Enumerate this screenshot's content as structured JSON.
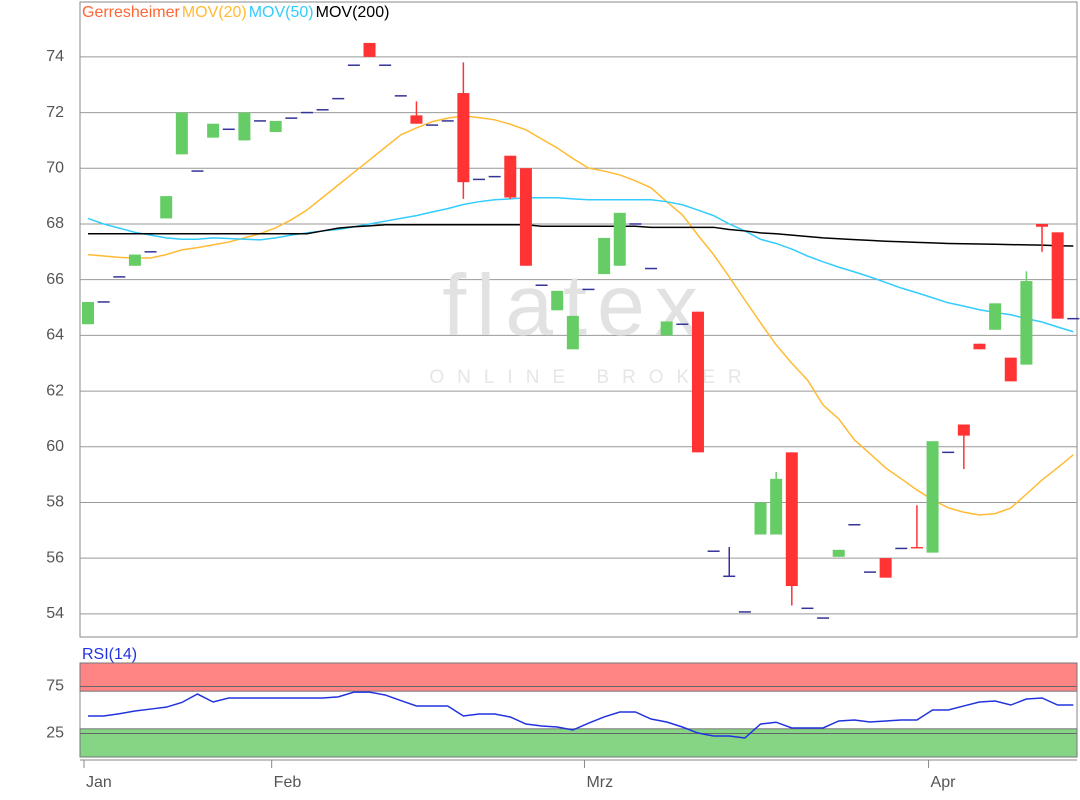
{
  "watermark": {
    "logo": "flatex",
    "tagline": "ONLINE BROKER"
  },
  "chart_data": [
    {
      "type": "candlestick",
      "categories": [
        "Jan",
        null,
        null,
        null,
        null,
        null,
        null,
        null,
        null,
        null,
        null,
        null,
        "Feb",
        null,
        null,
        null,
        null,
        null,
        null,
        null,
        null,
        null,
        null,
        null,
        null,
        null,
        null,
        null,
        null,
        null,
        null,
        null,
        "Mrz",
        null,
        null,
        null,
        null,
        null,
        null,
        null,
        null,
        null,
        null,
        null,
        null,
        null,
        null,
        null,
        null,
        null,
        null,
        null,
        null,
        null,
        "Apr",
        null,
        null,
        null,
        null,
        null,
        null,
        null,
        null,
        null
      ],
      "ylim": [
        53.17,
        75.97
      ],
      "yticks": [
        54,
        56,
        58,
        60,
        62,
        64,
        66,
        68,
        70,
        72,
        74
      ],
      "grid": true,
      "up_color": "#66cc66",
      "down_color": "#ff3333",
      "doji_color": "#333399",
      "series": [
        {
          "name": "Gerresheimer",
          "color": "#ff6633",
          "open": [
            64.4,
            65.2,
            66.1,
            66.5,
            67.0,
            68.2,
            70.5,
            69.9,
            71.1,
            71.4,
            71.0,
            71.7,
            71.3,
            71.8,
            72.0,
            72.1,
            72.5,
            73.7,
            74.5,
            73.7,
            72.6,
            71.9,
            71.55,
            71.7,
            72.7,
            69.6,
            69.7,
            70.45,
            70.0,
            65.8,
            64.9,
            63.5,
            65.65,
            66.2,
            66.5,
            68.0,
            66.4,
            64.0,
            64.4,
            64.85,
            56.25,
            55.35,
            54.07,
            56.85,
            56.85,
            59.8,
            54.2,
            53.85,
            56.05,
            57.2,
            55.5,
            56.0,
            56.35,
            56.4,
            56.2,
            59.8,
            60.8,
            63.7,
            64.2,
            63.2,
            62.95,
            68.0,
            67.7,
            64.6
          ],
          "high": [
            65.2,
            65.2,
            66.1,
            66.9,
            67.0,
            69.0,
            72.0,
            69.9,
            71.6,
            71.4,
            72.0,
            71.7,
            71.7,
            71.8,
            72.0,
            72.1,
            72.5,
            73.7,
            74.5,
            73.7,
            72.6,
            72.4,
            71.55,
            71.7,
            73.8,
            69.6,
            69.7,
            70.45,
            70.0,
            65.8,
            65.6,
            64.7,
            65.65,
            67.5,
            68.4,
            68.0,
            66.4,
            64.5,
            64.4,
            64.85,
            56.25,
            56.4,
            54.07,
            58.0,
            59.1,
            59.8,
            54.2,
            53.85,
            56.3,
            57.2,
            55.5,
            56.0,
            56.35,
            57.9,
            60.2,
            59.8,
            60.8,
            63.7,
            65.15,
            63.2,
            66.3,
            68.0,
            67.7,
            64.6
          ],
          "low": [
            64.4,
            65.2,
            66.1,
            66.5,
            67.0,
            68.2,
            70.5,
            69.9,
            71.1,
            71.4,
            71.0,
            71.7,
            71.3,
            71.8,
            72.0,
            72.1,
            72.5,
            73.7,
            74.0,
            73.7,
            72.6,
            71.6,
            71.55,
            71.7,
            68.9,
            69.6,
            69.7,
            68.9,
            66.5,
            65.8,
            64.9,
            63.5,
            65.65,
            66.2,
            66.5,
            68.0,
            66.4,
            64.0,
            64.4,
            59.8,
            56.25,
            55.35,
            54.07,
            56.85,
            56.85,
            54.3,
            54.2,
            53.85,
            56.05,
            57.2,
            55.5,
            55.3,
            56.35,
            56.35,
            56.2,
            59.8,
            59.2,
            63.5,
            64.2,
            62.35,
            62.95,
            67.0,
            64.6,
            64.6
          ],
          "close": [
            65.2,
            65.2,
            66.1,
            66.9,
            67.0,
            69.0,
            72.0,
            69.9,
            71.6,
            71.4,
            72.0,
            71.7,
            71.7,
            71.8,
            72.0,
            72.1,
            72.5,
            73.7,
            74.0,
            73.7,
            72.6,
            71.6,
            71.55,
            71.7,
            69.5,
            69.6,
            69.7,
            68.95,
            66.5,
            65.8,
            65.6,
            64.7,
            65.65,
            67.5,
            68.4,
            68.0,
            66.4,
            64.5,
            64.4,
            59.8,
            56.25,
            55.35,
            54.07,
            58.0,
            58.85,
            55.0,
            54.2,
            53.85,
            56.3,
            57.2,
            55.5,
            55.3,
            56.35,
            56.35,
            60.2,
            59.8,
            60.4,
            63.5,
            65.15,
            62.35,
            65.95,
            67.9,
            64.6,
            64.6
          ]
        },
        {
          "name": "MOV(20)",
          "color": "#ffbb33",
          "values": [
            66.9,
            66.85,
            66.8,
            66.78,
            66.78,
            66.9,
            67.07,
            67.15,
            67.25,
            67.35,
            67.5,
            67.65,
            67.86,
            68.15,
            68.5,
            68.95,
            69.4,
            69.85,
            70.3,
            70.75,
            71.2,
            71.45,
            71.67,
            71.8,
            71.88,
            71.82,
            71.74,
            71.58,
            71.38,
            71.05,
            70.73,
            70.35,
            70.01,
            69.9,
            69.76,
            69.55,
            69.3,
            68.8,
            68.33,
            67.6,
            66.9,
            66.1,
            65.27,
            64.45,
            63.66,
            63.0,
            62.4,
            61.5,
            61.0,
            60.25,
            59.75,
            59.24,
            58.85,
            58.45,
            58.1,
            57.81,
            57.65,
            57.55,
            57.6,
            57.8,
            58.3,
            58.81,
            59.25,
            59.71
          ]
        },
        {
          "name": "MOV(50)",
          "color": "#33ccff",
          "values": [
            68.2,
            68.0,
            67.85,
            67.7,
            67.6,
            67.5,
            67.45,
            67.45,
            67.5,
            67.48,
            67.45,
            67.43,
            67.5,
            67.6,
            67.68,
            67.75,
            67.8,
            67.9,
            68.0,
            68.1,
            68.2,
            68.3,
            68.43,
            68.55,
            68.7,
            68.8,
            68.87,
            68.9,
            68.94,
            68.94,
            68.94,
            68.9,
            68.87,
            68.87,
            68.87,
            68.87,
            68.87,
            68.8,
            68.69,
            68.5,
            68.3,
            68.0,
            67.75,
            67.45,
            67.3,
            67.1,
            66.85,
            66.64,
            66.45,
            66.28,
            66.1,
            65.9,
            65.7,
            65.53,
            65.35,
            65.17,
            65.05,
            64.92,
            64.82,
            64.74,
            64.6,
            64.48,
            64.3,
            64.13
          ]
        },
        {
          "name": "MOV(200)",
          "color": "#000000",
          "values": [
            67.65,
            67.65,
            67.65,
            67.65,
            67.65,
            67.65,
            67.65,
            67.65,
            67.65,
            67.65,
            67.65,
            67.65,
            67.65,
            67.65,
            67.65,
            67.75,
            67.85,
            67.9,
            67.93,
            67.97,
            67.97,
            67.97,
            67.97,
            67.97,
            67.97,
            67.97,
            67.97,
            67.97,
            67.97,
            67.92,
            67.92,
            67.92,
            67.92,
            67.92,
            67.92,
            67.92,
            67.88,
            67.88,
            67.88,
            67.88,
            67.88,
            67.8,
            67.75,
            67.68,
            67.65,
            67.6,
            67.55,
            67.5,
            67.47,
            67.44,
            67.41,
            67.38,
            67.36,
            67.34,
            67.32,
            67.3,
            67.29,
            67.28,
            67.27,
            67.26,
            67.25,
            67.24,
            67.22,
            67.21
          ]
        }
      ]
    },
    {
      "type": "line",
      "title": "RSI(14)",
      "ylim": [
        0,
        100
      ],
      "yticks": [
        25,
        75
      ],
      "grid": true,
      "bands": [
        {
          "from": 70,
          "to": 100,
          "color": "#ff8585"
        },
        {
          "from": 0,
          "to": 30,
          "color": "#85d585"
        }
      ],
      "series": [
        {
          "color": "#2233dd",
          "values": [
            43.6,
            43.6,
            46,
            48.9,
            51,
            53,
            58,
            67,
            58.5,
            62.8,
            62.8,
            62.8,
            62.8,
            62.8,
            62.8,
            62.8,
            64,
            69,
            69,
            66,
            60,
            54.3,
            54.3,
            54.3,
            43.6,
            45.7,
            45.7,
            42.6,
            35.1,
            33,
            31.9,
            28.7,
            36,
            42.6,
            47.9,
            47.9,
            40.4,
            37.2,
            31.9,
            25.5,
            22.3,
            22.3,
            20.2,
            35,
            37,
            30.9,
            30.9,
            30.9,
            38.3,
            39.4,
            37.2,
            38.3,
            39.4,
            39.4,
            50,
            50,
            54.3,
            58.5,
            59.6,
            55.3,
            61.7,
            62.8,
            55.3,
            55.3
          ]
        }
      ]
    }
  ]
}
